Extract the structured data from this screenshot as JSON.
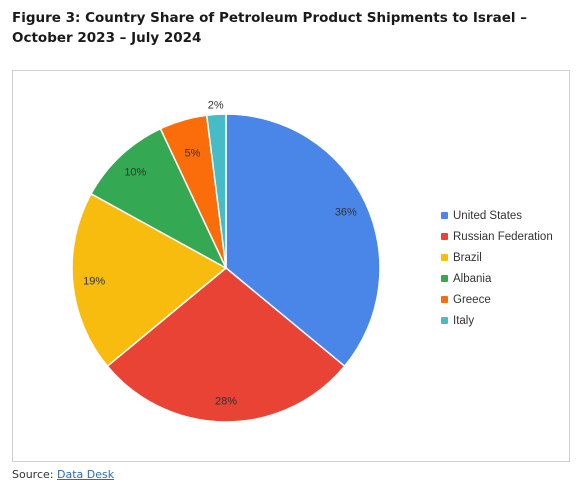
{
  "figure": {
    "title": "Figure 3: Country Share of Petroleum Product Shipments to Israel – October 2023 – July 2024"
  },
  "source": {
    "prefix": "Source: ",
    "link_text": "Data Desk"
  },
  "chart_data": {
    "type": "pie",
    "title": "",
    "legend_position": "right",
    "slices": [
      {
        "label": "United States",
        "value": 36,
        "display": "36%",
        "color": "#4a86e8"
      },
      {
        "label": "Russian Federation",
        "value": 28,
        "display": "28%",
        "color": "#e84335"
      },
      {
        "label": "Brazil",
        "value": 19,
        "display": "19%",
        "color": "#f8bc0e"
      },
      {
        "label": "Albania",
        "value": 10,
        "display": "10%",
        "color": "#34a853"
      },
      {
        "label": "Greece",
        "value": 5,
        "display": "5%",
        "color": "#fa6d0a"
      },
      {
        "label": "Italy",
        "value": 2,
        "display": "2%",
        "color": "#46bdc6"
      }
    ]
  }
}
